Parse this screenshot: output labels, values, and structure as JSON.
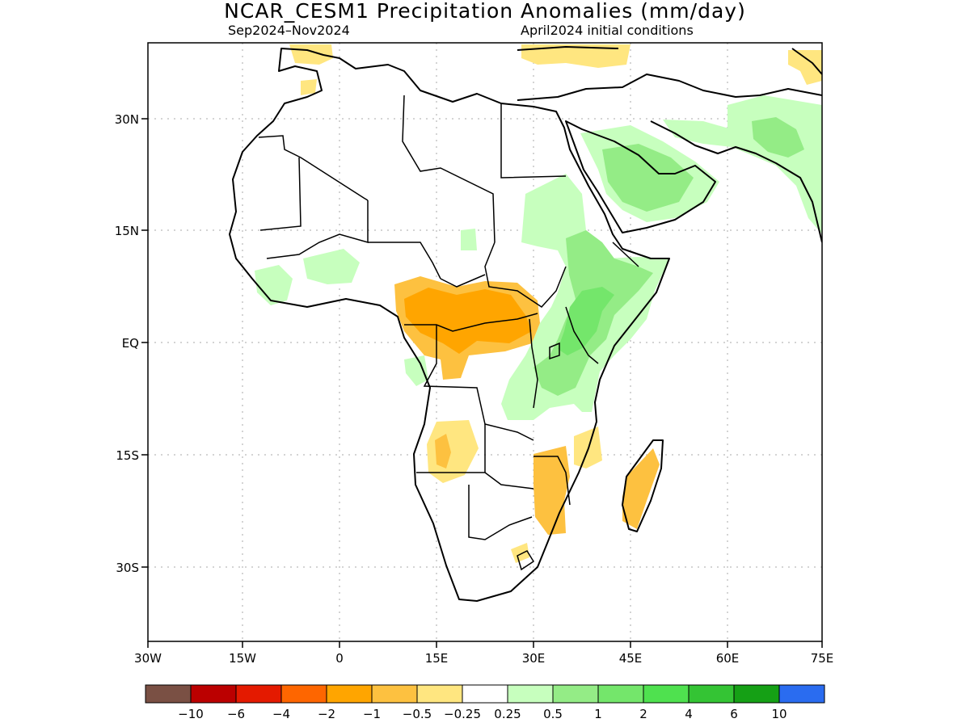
{
  "title": "NCAR_CESM1 Precipitation Anomalies (mm/day)",
  "season": "Sep2024–Nov2024",
  "init": "April2024 initial conditions",
  "lat_ticks": [
    "30N",
    "15N",
    "EQ",
    "15S",
    "30S"
  ],
  "lon_ticks": [
    "30W",
    "15W",
    "0",
    "15E",
    "30E",
    "45E",
    "60E",
    "75E"
  ],
  "colorbar": {
    "colors": [
      "#7a5044",
      "#bb0000",
      "#e41a00",
      "#fe6600",
      "#ffa500",
      "#fdc140",
      "#ffe680",
      "#ffffff",
      "#c7ffbe",
      "#94ec86",
      "#74e66b",
      "#4fe14f",
      "#34c434",
      "#15a015",
      "#2a6cf0"
    ],
    "labels": [
      "−10",
      "−6",
      "−4",
      "−2",
      "−1",
      "−0.5",
      "−0.25",
      "0.25",
      "0.5",
      "1",
      "2",
      "4",
      "6",
      "10"
    ]
  }
}
